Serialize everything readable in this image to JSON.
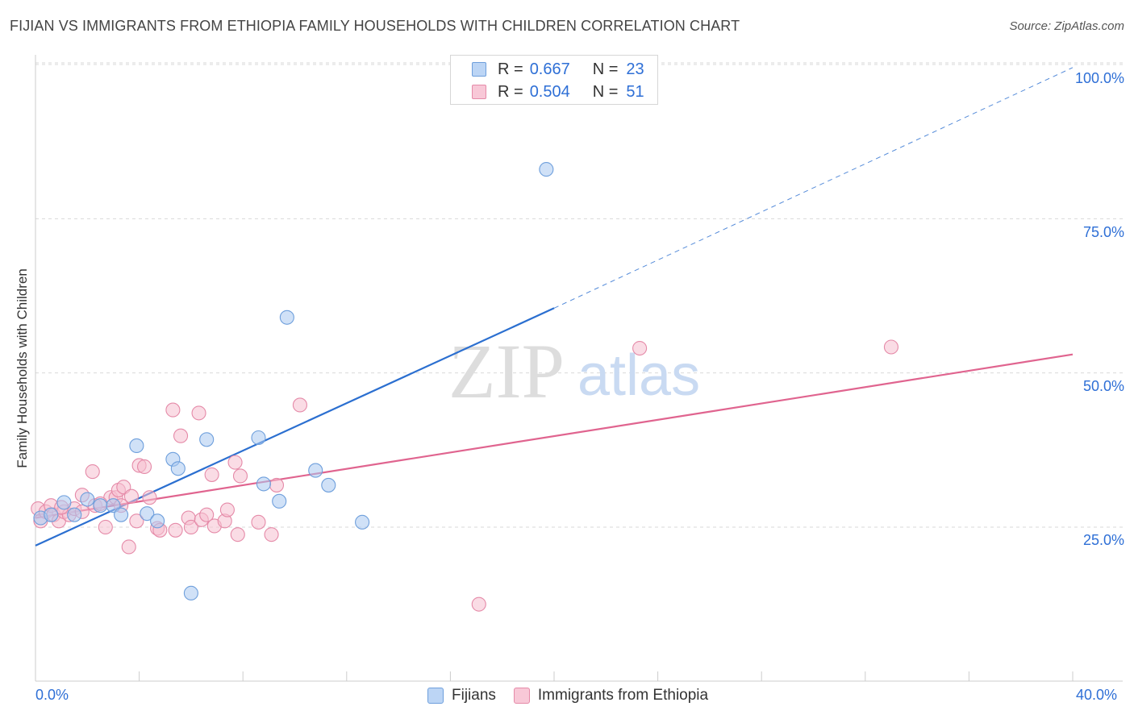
{
  "title": "FIJIAN VS IMMIGRANTS FROM ETHIOPIA FAMILY HOUSEHOLDS WITH CHILDREN CORRELATION CHART",
  "source": "Source: ZipAtlas.com",
  "watermark": {
    "zip": "ZIP",
    "atlas": "atlas"
  },
  "legend_top": [
    {
      "r_label": "R =",
      "r_value": "0.667",
      "n_label": "N =",
      "n_value": "23"
    },
    {
      "r_label": "R =",
      "r_value": "0.504",
      "n_label": "N =",
      "n_value": "51"
    }
  ],
  "chart_data": {
    "type": "scatter",
    "title": "FIJIAN VS IMMIGRANTS FROM ETHIOPIA FAMILY HOUSEHOLDS WITH CHILDREN CORRELATION CHART",
    "xlabel": "",
    "ylabel": "Family Households with Children",
    "xlim": [
      0,
      40
    ],
    "ylim": [
      0,
      105
    ],
    "x_tick_labels": [
      "0.0%",
      "40.0%"
    ],
    "y_ticks": [
      25,
      50,
      75,
      100
    ],
    "y_tick_labels": [
      "25.0%",
      "50.0%",
      "75.0%",
      "100.0%"
    ],
    "grid": true,
    "legend_placement": "bottom-center",
    "series": [
      {
        "name": "Fijians",
        "color": "#a9c8f0",
        "stroke": "#6e9fdc",
        "line_color": "#2b6fd0",
        "r": 0.667,
        "n": 23,
        "trend": {
          "x0": 0,
          "y0": 22,
          "x1": 20,
          "y1": 60.5,
          "dashed_to_x": 40,
          "dashed_to_y": 99.5
        },
        "points": [
          [
            0.2,
            26.5
          ],
          [
            1.1,
            29
          ],
          [
            1.5,
            27
          ],
          [
            2,
            29.5
          ],
          [
            2.5,
            28.5
          ],
          [
            3,
            28.5
          ],
          [
            3.3,
            27
          ],
          [
            3.9,
            38.2
          ],
          [
            4.3,
            27.2
          ],
          [
            4.7,
            26
          ],
          [
            5.3,
            36
          ],
          [
            5.5,
            34.5
          ],
          [
            6.0,
            14.3
          ],
          [
            6.6,
            39.2
          ],
          [
            8.6,
            39.5
          ],
          [
            8.8,
            32
          ],
          [
            9.4,
            29.2
          ],
          [
            9.7,
            59
          ],
          [
            10.8,
            34.2
          ],
          [
            11.3,
            31.8
          ],
          [
            12.6,
            25.8
          ],
          [
            19.7,
            83
          ],
          [
            0.6,
            27
          ]
        ]
      },
      {
        "name": "Immigrants from Ethiopia",
        "color": "#f6bfd0",
        "stroke": "#e58aa8",
        "line_color": "#e0648f",
        "r": 0.504,
        "n": 51,
        "trend": {
          "x0": 0,
          "y0": 26.5,
          "x1": 40,
          "y1": 53
        },
        "points": [
          [
            0.1,
            28
          ],
          [
            0.2,
            26
          ],
          [
            0.4,
            27.5
          ],
          [
            0.6,
            28.5
          ],
          [
            0.7,
            27
          ],
          [
            0.9,
            26
          ],
          [
            1.1,
            27.5
          ],
          [
            1.3,
            27
          ],
          [
            1.5,
            28
          ],
          [
            1.8,
            27.5
          ],
          [
            1.8,
            30.2
          ],
          [
            2.2,
            34
          ],
          [
            2.3,
            28.5
          ],
          [
            2.7,
            25
          ],
          [
            2.9,
            29.8
          ],
          [
            3.1,
            29.8
          ],
          [
            3.2,
            31
          ],
          [
            3.3,
            28.5
          ],
          [
            3.4,
            31.5
          ],
          [
            3.6,
            21.8
          ],
          [
            3.7,
            30
          ],
          [
            3.9,
            26
          ],
          [
            4.0,
            35
          ],
          [
            4.2,
            34.8
          ],
          [
            4.4,
            29.8
          ],
          [
            4.7,
            24.8
          ],
          [
            4.8,
            24.5
          ],
          [
            5.3,
            44
          ],
          [
            5.4,
            24.5
          ],
          [
            5.6,
            39.8
          ],
          [
            5.9,
            26.5
          ],
          [
            6.0,
            25
          ],
          [
            6.3,
            43.5
          ],
          [
            6.4,
            26.2
          ],
          [
            6.6,
            27
          ],
          [
            6.8,
            33.5
          ],
          [
            6.9,
            25.2
          ],
          [
            7.3,
            26
          ],
          [
            7.4,
            27.8
          ],
          [
            7.7,
            35.5
          ],
          [
            7.8,
            23.8
          ],
          [
            7.9,
            33.3
          ],
          [
            8.6,
            25.8
          ],
          [
            9.1,
            23.8
          ],
          [
            9.3,
            31.8
          ],
          [
            10.2,
            44.8
          ],
          [
            17.1,
            12.5
          ],
          [
            23.3,
            54
          ],
          [
            33.0,
            54.2
          ],
          [
            1.0,
            28.2
          ],
          [
            2.5,
            28.8
          ]
        ]
      }
    ]
  }
}
